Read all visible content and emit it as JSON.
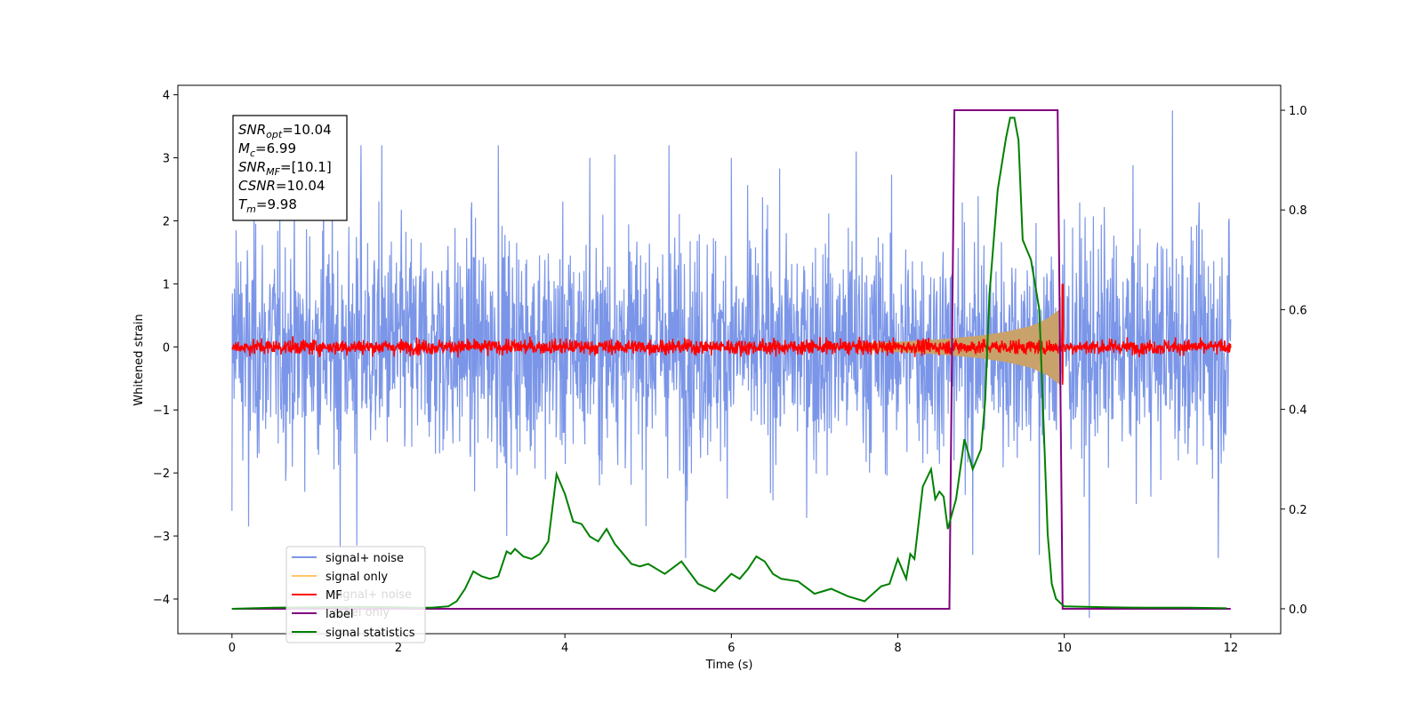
{
  "chart_data": {
    "type": "line",
    "xlabel": "Time (s)",
    "ylabel": "Whitened strain",
    "xlim": [
      -0.65,
      12.6
    ],
    "ylim": [
      -4.55,
      4.15
    ],
    "y2lim": [
      -0.05,
      1.05
    ],
    "xticks": [
      0,
      2,
      4,
      6,
      8,
      10,
      12
    ],
    "yticks": [
      -4,
      -3,
      -2,
      -1,
      0,
      1,
      2,
      3,
      4
    ],
    "y2ticks": [
      0.0,
      0.2,
      0.4,
      0.6,
      0.8,
      1.0
    ],
    "info_box": [
      {
        "base": "SNR",
        "sub": "opt",
        "value": "=10.04"
      },
      {
        "base": "M",
        "sub": "c",
        "value": "=6.99"
      },
      {
        "base": "SNR",
        "sub": "MF",
        "value": "=[10.1]"
      },
      {
        "base": "CSNR",
        "sub": "",
        "value": "=10.04"
      },
      {
        "base": "T",
        "sub": "m",
        "value": "=9.98"
      }
    ],
    "legend": [
      {
        "label": "signal+ noise",
        "color": "#7b96e8"
      },
      {
        "label": "signal only",
        "color": "#ffc466"
      },
      {
        "label": "MF",
        "color": "#ff0000"
      },
      {
        "label": "label",
        "color": "#800080"
      },
      {
        "label": "signal statistics",
        "color": "#008000"
      }
    ],
    "legend_ghost": [
      "signal+ noise",
      "label only"
    ],
    "series": [
      {
        "name": "signal+ noise",
        "color": "#7b96e8",
        "axis": "left",
        "x_range": [
          0,
          12
        ],
        "description": "whitened noise, roughly between -2.5 and 2.5 with spikes",
        "spikes": [
          {
            "x": 0.0,
            "y": -2.6
          },
          {
            "x": 0.05,
            "y": 1.85
          },
          {
            "x": 0.2,
            "y": -2.85
          },
          {
            "x": 1.1,
            "y": 3.1
          },
          {
            "x": 1.3,
            "y": -3.2
          },
          {
            "x": 1.5,
            "y": -3.15
          },
          {
            "x": 1.55,
            "y": 3.2
          },
          {
            "x": 1.8,
            "y": 3.2
          },
          {
            "x": 3.2,
            "y": 3.2
          },
          {
            "x": 3.3,
            "y": -3.0
          },
          {
            "x": 4.3,
            "y": 3.0
          },
          {
            "x": 4.6,
            "y": 3.05
          },
          {
            "x": 5.25,
            "y": 3.2
          },
          {
            "x": 5.45,
            "y": -3.35
          },
          {
            "x": 6.0,
            "y": 3.0
          },
          {
            "x": 7.5,
            "y": 3.1
          },
          {
            "x": 8.9,
            "y": -3.3
          },
          {
            "x": 9.7,
            "y": -3.3
          },
          {
            "x": 10.3,
            "y": -4.3
          },
          {
            "x": 11.3,
            "y": 3.75
          },
          {
            "x": 11.85,
            "y": -3.35
          }
        ]
      },
      {
        "name": "signal only",
        "color": "#ffc466",
        "axis": "left",
        "description": "chirp envelope growing toward merger",
        "envelope": {
          "x": [
            7.5,
            8.0,
            8.5,
            9.0,
            9.3,
            9.6,
            9.8,
            9.95
          ],
          "amp": [
            0.05,
            0.08,
            0.12,
            0.18,
            0.24,
            0.33,
            0.45,
            0.6
          ]
        }
      },
      {
        "name": "MF",
        "color": "#ff0000",
        "axis": "left",
        "x_range": [
          0,
          12
        ],
        "description": "matched filter output near zero, amplitude about 0.15, spike at ~9.98",
        "spike": {
          "x": 9.98,
          "y_max": 1.0,
          "y_min": -0.6
        }
      },
      {
        "name": "label",
        "color": "#800080",
        "axis": "right",
        "x": [
          0,
          8.62,
          8.68,
          9.92,
          9.98,
          12
        ],
        "y": [
          0.0,
          0.0,
          1.0,
          1.0,
          0.0,
          0.0
        ]
      },
      {
        "name": "signal statistics",
        "color": "#008000",
        "axis": "right",
        "x": [
          0.0,
          0.5,
          1.0,
          1.5,
          2.0,
          2.2,
          2.4,
          2.6,
          2.7,
          2.8,
          2.9,
          3.0,
          3.1,
          3.2,
          3.3,
          3.35,
          3.4,
          3.5,
          3.6,
          3.7,
          3.8,
          3.9,
          4.0,
          4.1,
          4.2,
          4.3,
          4.4,
          4.5,
          4.6,
          4.7,
          4.8,
          4.9,
          5.0,
          5.2,
          5.4,
          5.6,
          5.8,
          6.0,
          6.1,
          6.2,
          6.3,
          6.4,
          6.5,
          6.6,
          6.8,
          7.0,
          7.2,
          7.4,
          7.6,
          7.7,
          7.8,
          7.9,
          8.0,
          8.05,
          8.1,
          8.15,
          8.2,
          8.3,
          8.4,
          8.45,
          8.5,
          8.55,
          8.6,
          8.7,
          8.8,
          8.9,
          9.0,
          9.05,
          9.1,
          9.2,
          9.3,
          9.35,
          9.4,
          9.45,
          9.5,
          9.6,
          9.7,
          9.8,
          9.85,
          9.9,
          9.95,
          10.0,
          10.5,
          11.0,
          11.5,
          11.95
        ],
        "y": [
          0.0,
          0.002,
          0.003,
          0.004,
          0.003,
          0.002,
          0.002,
          0.005,
          0.015,
          0.04,
          0.075,
          0.065,
          0.06,
          0.065,
          0.115,
          0.11,
          0.12,
          0.105,
          0.1,
          0.11,
          0.135,
          0.27,
          0.23,
          0.175,
          0.17,
          0.145,
          0.135,
          0.16,
          0.13,
          0.11,
          0.09,
          0.085,
          0.09,
          0.07,
          0.095,
          0.05,
          0.035,
          0.07,
          0.06,
          0.08,
          0.105,
          0.095,
          0.07,
          0.06,
          0.055,
          0.03,
          0.04,
          0.025,
          0.015,
          0.03,
          0.045,
          0.05,
          0.1,
          0.08,
          0.06,
          0.11,
          0.1,
          0.245,
          0.28,
          0.22,
          0.235,
          0.225,
          0.16,
          0.22,
          0.34,
          0.28,
          0.32,
          0.42,
          0.63,
          0.84,
          0.945,
          0.985,
          0.985,
          0.94,
          0.74,
          0.7,
          0.6,
          0.15,
          0.05,
          0.02,
          0.012,
          0.005,
          0.003,
          0.002,
          0.002,
          0.001
        ]
      }
    ]
  }
}
